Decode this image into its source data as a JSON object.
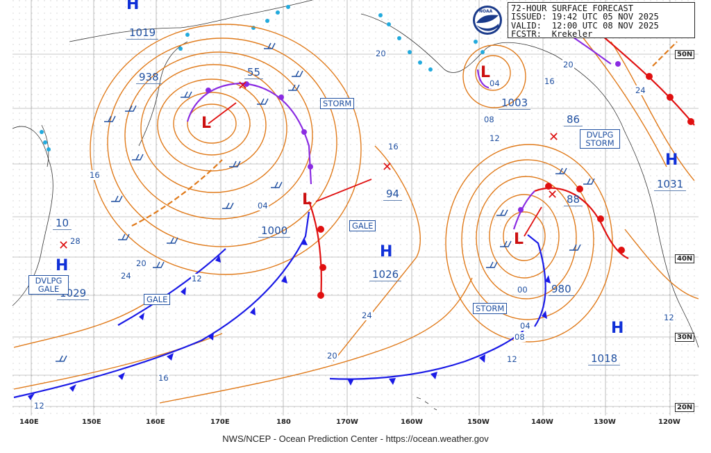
{
  "header": {
    "line1": "72-HOUR SURFACE FORECAST",
    "line2": "ISSUED: 19:42 UTC 05 NOV 2025",
    "line3": "VALID:  12:00 UTC 08 NOV 2025",
    "line4": "FCSTR:  Krekeler",
    "logo_text": "NOAA"
  },
  "footer": "NWS/NCEP - Ocean Prediction Center - https://ocean.weather.gov",
  "longitude_labels": [
    "140E",
    "150E",
    "160E",
    "170E",
    "180",
    "170W",
    "160W",
    "150W",
    "140W",
    "130W",
    "120W"
  ],
  "latitude_labels": [
    "50N",
    "40N",
    "30N",
    "20N"
  ],
  "pressure_labels": [
    "1019",
    "938",
    "55",
    "1000",
    "94",
    "1026",
    "1003",
    "86",
    "88",
    "980",
    "1031",
    "1018",
    "1029",
    "10"
  ],
  "warning_boxes": [
    "STORM",
    "GALE",
    "GALE",
    "DVLPG STORM",
    "STORM",
    "DVLPG GALE"
  ],
  "isobar_labels": [
    "20",
    "16",
    "04",
    "20",
    "24",
    "12",
    "16",
    "12",
    "04",
    "08",
    "12",
    "16",
    "20",
    "24",
    "08",
    "12",
    "28",
    "00",
    "04",
    "12",
    "20",
    "16"
  ],
  "high_symbol": "H",
  "low_symbol": "L",
  "colors": {
    "isobar": "#e07a1a",
    "cold_front": "#1a1ae6",
    "warm_front": "#e01010",
    "occluded": "#8a2be2",
    "text": "#1f4fa0",
    "ice": "#22aadd"
  }
}
